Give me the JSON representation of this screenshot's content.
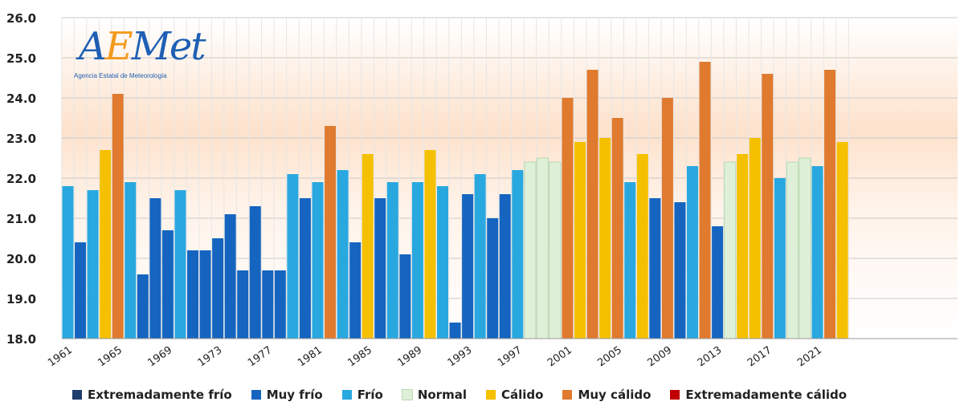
{
  "logo": {
    "word_a": "A",
    "word_e": "E",
    "word_rest": "Met",
    "subtitle": "Agencia Estatal de Meteorología"
  },
  "colors": {
    "extremadamente_frio": "#1f3c6e",
    "muy_frio": "#1565c0",
    "frio": "#29a8e0",
    "normal": "#dff0d8",
    "calido": "#f5c000",
    "muy_calido": "#e07a2e",
    "extremadamente_calido": "#c00000"
  },
  "legend": [
    {
      "label": "Extremadamente frío",
      "color": "#1f3c6e"
    },
    {
      "label": "Muy frío",
      "color": "#1565c0"
    },
    {
      "label": "Frío",
      "color": "#29a8e0"
    },
    {
      "label": "Normal",
      "color": "#dff0d8"
    },
    {
      "label": "Cálido",
      "color": "#f5c000"
    },
    {
      "label": "Muy cálido",
      "color": "#e07a2e"
    },
    {
      "label": "Extremadamente cálido",
      "color": "#c00000"
    }
  ],
  "chart_data": {
    "type": "bar",
    "title": "",
    "xlabel": "",
    "ylabel": "",
    "ylim": [
      18.0,
      26.0
    ],
    "yticks": [
      "18.0",
      "19.0",
      "20.0",
      "21.0",
      "22.0",
      "23.0",
      "24.0",
      "25.0",
      "26.0"
    ],
    "xticks": [
      "1961",
      "1965",
      "1969",
      "1973",
      "1977",
      "1981",
      "1985",
      "1989",
      "1993",
      "1997",
      "2001",
      "2005",
      "2009",
      "2013",
      "2017",
      "2021"
    ],
    "grid": true,
    "legend_position": "bottom",
    "x": [
      1961,
      1962,
      1963,
      1964,
      1965,
      1966,
      1967,
      1968,
      1969,
      1970,
      1971,
      1972,
      1973,
      1974,
      1975,
      1976,
      1977,
      1978,
      1979,
      1980,
      1981,
      1982,
      1983,
      1984,
      1985,
      1986,
      1987,
      1988,
      1989,
      1990,
      1991,
      1992,
      1993,
      1994,
      1995,
      1996,
      1997,
      1998,
      1999,
      2000,
      2001,
      2002,
      2003,
      2004,
      2005,
      2006,
      2007,
      2008,
      2009,
      2010,
      2011,
      2012,
      2013,
      2014,
      2015,
      2016,
      2017,
      2018,
      2019,
      2020,
      2021,
      2022
    ],
    "values": [
      21.8,
      20.4,
      21.7,
      22.7,
      24.1,
      21.9,
      19.6,
      21.5,
      20.7,
      21.7,
      20.2,
      20.2,
      20.5,
      21.1,
      19.7,
      21.3,
      19.7,
      19.7,
      22.1,
      21.5,
      21.9,
      23.3,
      22.2,
      20.4,
      22.6,
      21.5,
      21.9,
      20.1,
      21.9,
      22.7,
      21.8,
      18.4,
      21.6,
      22.1,
      21.0,
      21.6,
      22.2,
      22.4,
      22.5,
      22.4,
      24.0,
      22.9,
      24.7,
      23.0,
      23.5,
      21.9,
      22.6,
      21.5,
      24.0,
      21.4,
      22.3,
      24.9,
      20.8,
      22.4,
      22.6,
      23.0,
      24.6,
      22.0,
      22.4,
      22.5,
      22.3,
      24.7
    ],
    "categories": [
      "frio",
      "muy_frio",
      "frio",
      "calido",
      "muy_calido",
      "frio",
      "muy_frio",
      "muy_frio",
      "muy_frio",
      "frio",
      "muy_frio",
      "muy_frio",
      "muy_frio",
      "muy_frio",
      "muy_frio",
      "muy_frio",
      "muy_frio",
      "muy_frio",
      "frio",
      "muy_frio",
      "frio",
      "muy_calido",
      "frio",
      "muy_frio",
      "calido",
      "muy_frio",
      "frio",
      "muy_frio",
      "frio",
      "calido",
      "frio",
      "muy_frio",
      "muy_frio",
      "frio",
      "muy_frio",
      "muy_frio",
      "frio",
      "normal",
      "normal",
      "normal",
      "muy_calido",
      "calido",
      "muy_calido",
      "calido",
      "muy_calido",
      "frio",
      "calido",
      "muy_frio",
      "muy_calido",
      "muy_frio",
      "frio",
      "muy_calido",
      "muy_frio",
      "normal",
      "calido",
      "calido",
      "muy_calido",
      "frio",
      "normal",
      "normal",
      "frio",
      "muy_calido"
    ],
    "extra_bar": {
      "x": 2023,
      "value": 22.9,
      "category": "calido"
    }
  }
}
